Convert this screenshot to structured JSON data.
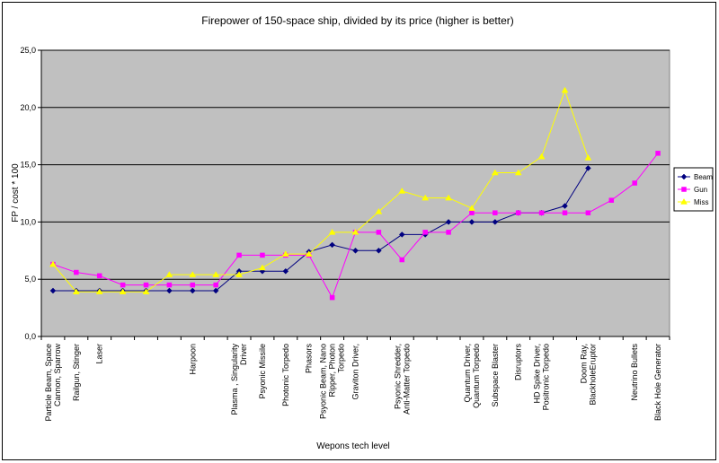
{
  "chart_data": {
    "type": "line",
    "title": "Firepower of 150-space ship, divided by its price (higher is better)",
    "xlabel": "Wepons tech level",
    "ylabel": "FP / cost * 100",
    "ylim": [
      0,
      25
    ],
    "yticks": [
      "0,0",
      "5,0",
      "10,0",
      "15,0",
      "20,0",
      "25,0"
    ],
    "grid": true,
    "legend": "right",
    "categories": [
      "Particle Beam, Space Cannon, Sparrow",
      "Railgun, Stinger",
      "Laser",
      "",
      "",
      "",
      "Harpoon",
      "",
      "Plasma , Singularity Driver",
      "Psyonic Missile",
      "Photonic Torpedo",
      "Phasors",
      "Psyonic Beam, Nano Ripper, Photon Torpedo",
      "Graviton Driver,",
      "",
      "Psyonic Shredder, Anti-Matter Torpedo",
      "",
      "",
      "Quantum Driver, Quantum Torpedo",
      "Subspace Blaster",
      "Disruptors",
      "HD Spike Driver, Positronic Torpedo",
      "",
      "Doom Ray, BlackholeEruptor",
      "",
      "Neutrino Bullets",
      "Black Hole Generator"
    ],
    "series": [
      {
        "name": "Beam",
        "color": "#000080",
        "marker": "diamond",
        "values": [
          4.0,
          4.0,
          4.0,
          4.0,
          4.0,
          4.0,
          4.0,
          4.0,
          5.7,
          5.7,
          5.7,
          7.4,
          8.0,
          7.5,
          7.5,
          8.9,
          8.9,
          10.0,
          10.0,
          10.0,
          10.8,
          10.8,
          11.4,
          14.7,
          null,
          null,
          null
        ]
      },
      {
        "name": "Gun",
        "color": "#ff00ff",
        "marker": "square",
        "values": [
          6.3,
          5.6,
          5.3,
          4.5,
          4.5,
          4.5,
          4.5,
          4.5,
          7.1,
          7.1,
          7.1,
          7.1,
          3.4,
          9.1,
          9.1,
          6.7,
          9.1,
          9.1,
          10.8,
          10.8,
          10.8,
          10.8,
          10.8,
          10.8,
          11.9,
          13.4,
          16.0
        ]
      },
      {
        "name": "Miss",
        "color": "#ffff00",
        "marker": "triangle",
        "values": [
          6.3,
          3.9,
          3.9,
          3.9,
          3.9,
          5.4,
          5.4,
          5.4,
          5.4,
          6.0,
          7.2,
          7.2,
          9.1,
          9.1,
          10.9,
          12.7,
          12.1,
          12.1,
          11.2,
          14.3,
          14.3,
          15.7,
          21.5,
          15.6,
          null,
          null,
          null
        ]
      }
    ]
  }
}
